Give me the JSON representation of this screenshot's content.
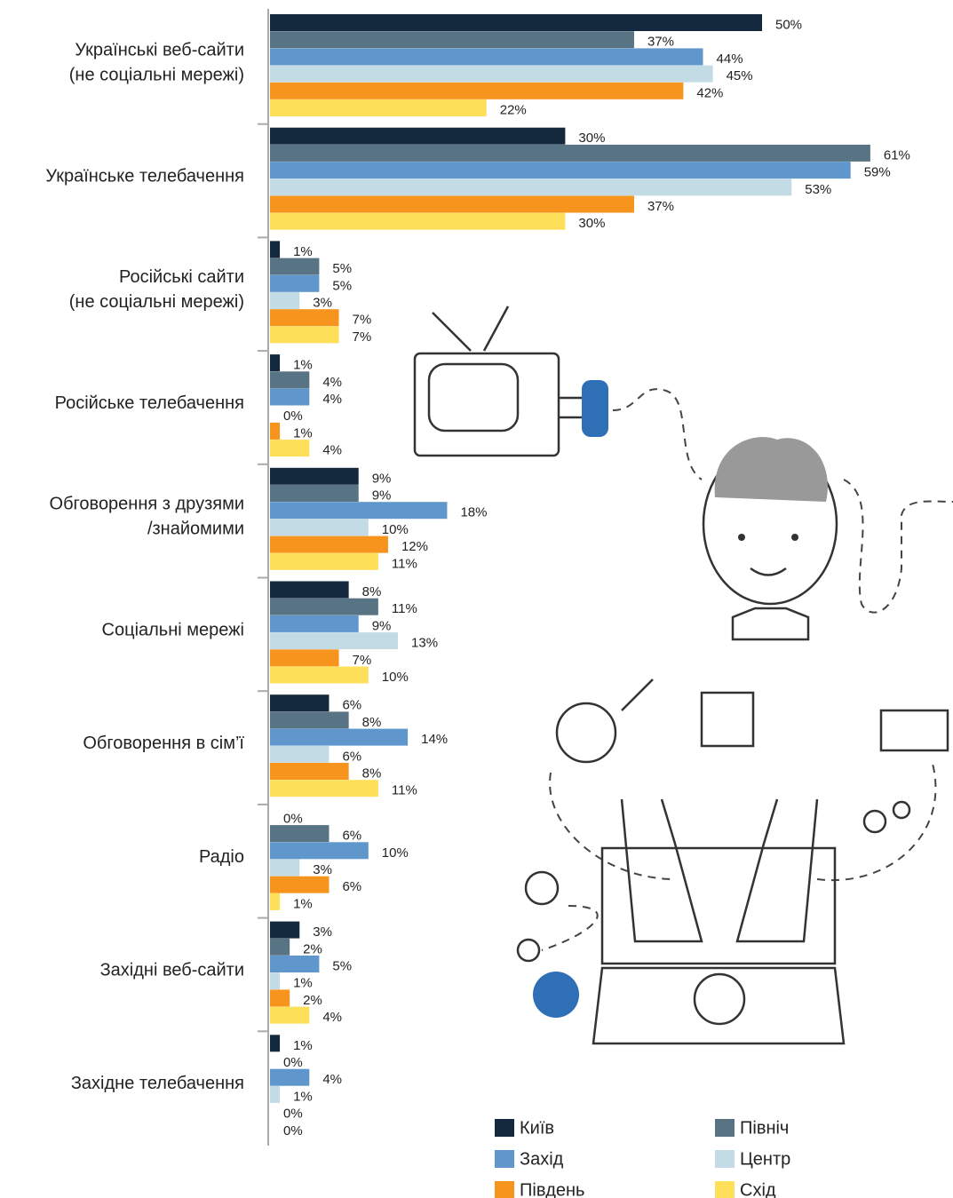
{
  "chart_data": {
    "type": "bar",
    "orientation": "horizontal",
    "categories": [
      "Українські веб-сайти\n(не соціальні мережі)",
      "Українське телебачення",
      "Російські сайти\n(не соціальні мережі)",
      "Російське телебачення",
      "Обговорення з друзями\n/знайомими",
      "Соціальні мережі",
      "Обговорення в сім’ї",
      "Радіо",
      "Західні веб-сайти",
      "Західне телебачення"
    ],
    "series": [
      {
        "name": "Київ",
        "color": "#14293d",
        "values": [
          50,
          30,
          1,
          1,
          9,
          8,
          6,
          0,
          3,
          1
        ],
        "value_labels": [
          "50%",
          "30%",
          "1%",
          "1%",
          "9%",
          "8%",
          "6%",
          "0%",
          "3%",
          "1%"
        ]
      },
      {
        "name": "Північ",
        "color": "#587383",
        "values": [
          37,
          61,
          5,
          4,
          9,
          11,
          8,
          6,
          2,
          0
        ],
        "value_labels": [
          "37%",
          "61%",
          "5%",
          "4%",
          "9%",
          "11%",
          "8%",
          "6%",
          "2%",
          "0%"
        ]
      },
      {
        "name": "Захід",
        "color": "#5f97cc",
        "values": [
          44,
          59,
          5,
          4,
          18,
          9,
          14,
          10,
          5,
          4
        ],
        "value_labels": [
          "44%",
          "59%",
          "5%",
          "4%",
          "18%",
          "9%",
          "14%",
          "10%",
          "5%",
          "4%"
        ]
      },
      {
        "name": "Центр",
        "color": "#c3dbe5",
        "values": [
          45,
          53,
          3,
          0,
          10,
          13,
          6,
          3,
          1,
          1
        ],
        "value_labels": [
          "45%",
          "53%",
          "3%",
          "0%",
          "10%",
          "13%",
          "6%",
          "3%",
          "1%",
          "1%"
        ]
      },
      {
        "name": "Південь",
        "color": "#f7941d",
        "values": [
          42,
          37,
          7,
          1,
          12,
          7,
          8,
          6,
          2,
          0
        ],
        "value_labels": [
          "42%",
          "37%",
          "7%",
          "1%",
          "12%",
          "7%",
          "8%",
          "6%",
          "2%",
          "0%"
        ]
      },
      {
        "name": "Схід",
        "color": "#fedf5a",
        "values": [
          22,
          30,
          7,
          4,
          11,
          10,
          11,
          1,
          4,
          0
        ],
        "value_labels": [
          "22%",
          "30%",
          "7%",
          "4%",
          "11%",
          "10%",
          "11%",
          "1%",
          "4%",
          "0%"
        ]
      }
    ]
  }
}
